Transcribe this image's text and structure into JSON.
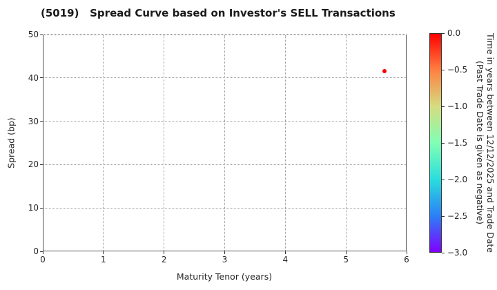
{
  "chart_data": {
    "type": "scatter",
    "title": "(5019)   Spread Curve based on Investor's SELL Transactions",
    "xlabel": "Maturity Tenor (years)",
    "ylabel": "Spread (bp)",
    "xlim": [
      0,
      6
    ],
    "ylim": [
      0,
      50
    ],
    "xticks": [
      0,
      1,
      2,
      3,
      4,
      5,
      6
    ],
    "yticks": [
      0,
      10,
      20,
      30,
      40,
      50
    ],
    "grid": true,
    "grid_style": "dotted",
    "points": [
      {
        "x": 5.63,
        "y": 41.5,
        "time_value": 0.0,
        "color": "#ff0000"
      }
    ],
    "colorbar": {
      "label_line1": "Time in years between 12/12/2025 and Trade Date",
      "label_line2": "(Past Trade Date is given as negative)",
      "ticks": [
        "0.0",
        "−0.5",
        "−1.0",
        "−1.5",
        "−2.0",
        "−2.5",
        "−3.0"
      ],
      "range": [
        0.0,
        -3.0
      ],
      "colormap": "rainbow",
      "gradient_stops": [
        "#ff0000",
        "#ff8042",
        "#d5dd80",
        "#80ffb4",
        "#2bdddd",
        "#2b80f6",
        "#8000ff"
      ]
    }
  }
}
